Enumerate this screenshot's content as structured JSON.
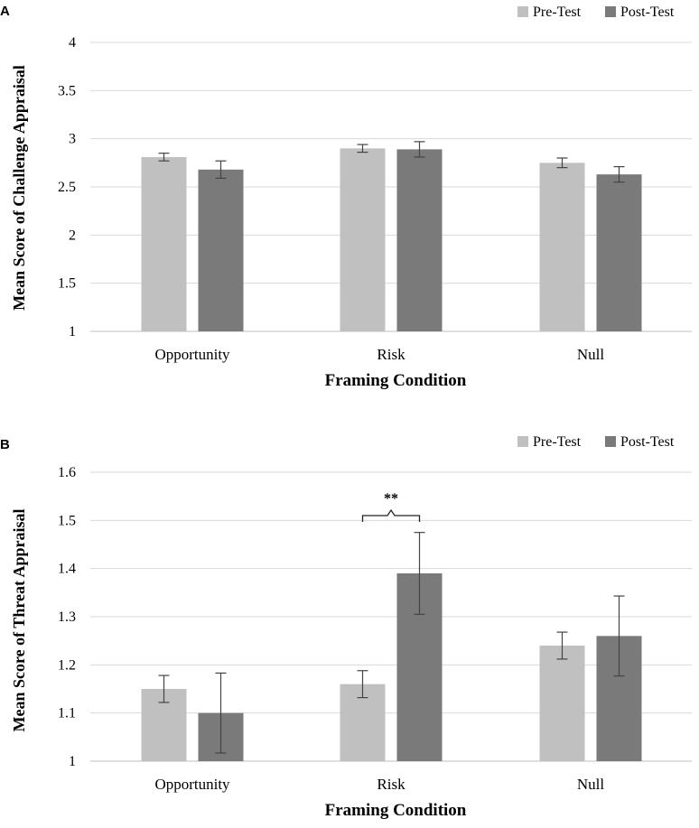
{
  "colors": {
    "pre": "#c0c0c0",
    "post": "#7a7a7a",
    "grid": "#d9d9d9",
    "axis": "#bfbfbf",
    "errorbar": "#444444"
  },
  "chart_data": [
    {
      "panel": "A",
      "type": "bar",
      "categories": [
        "Opportunity",
        "Risk",
        "Null"
      ],
      "series": [
        {
          "name": "Pre-Test",
          "values": [
            2.81,
            2.9,
            2.75
          ],
          "errors": [
            0.04,
            0.04,
            0.05
          ]
        },
        {
          "name": "Post-Test",
          "values": [
            2.68,
            2.89,
            2.63
          ],
          "errors": [
            0.09,
            0.08,
            0.08
          ]
        }
      ],
      "xlabel": "Framing Condition",
      "ylabel": "Mean Score of Challenge Appraisal",
      "ylim": [
        1,
        4
      ],
      "yticks": [
        "1",
        "1.5",
        "2",
        "2.5",
        "3",
        "3.5",
        "4"
      ],
      "ytick_values": [
        1,
        1.5,
        2,
        2.5,
        3,
        3.5,
        4
      ],
      "grid": true,
      "legend": "top-right"
    },
    {
      "panel": "B",
      "type": "bar",
      "categories": [
        "Opportunity",
        "Risk",
        "Null"
      ],
      "series": [
        {
          "name": "Pre-Test",
          "values": [
            1.15,
            1.16,
            1.24
          ],
          "errors": [
            0.028,
            0.028,
            0.028
          ]
        },
        {
          "name": "Post-Test",
          "values": [
            1.1,
            1.39,
            1.26
          ],
          "errors": [
            0.083,
            0.085,
            0.083
          ]
        }
      ],
      "xlabel": "Framing Condition",
      "ylabel": "Mean Score of Threat Appraisal",
      "ylim": [
        1,
        1.6
      ],
      "yticks": [
        "1",
        "1.1",
        "1.2",
        "1.3",
        "1.4",
        "1.5",
        "1.6"
      ],
      "ytick_values": [
        1,
        1.1,
        1.2,
        1.3,
        1.4,
        1.5,
        1.6
      ],
      "grid": true,
      "legend": "top-right",
      "annotation": {
        "text": "**",
        "category": "Risk",
        "value": 1.51
      }
    }
  ]
}
